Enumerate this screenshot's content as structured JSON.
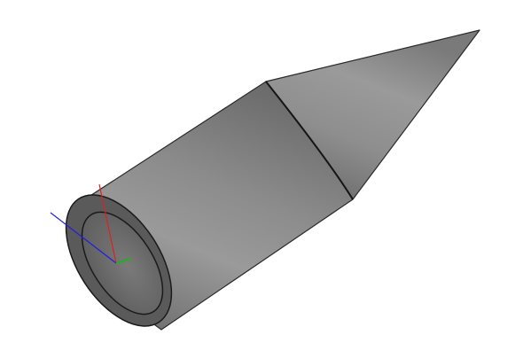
{
  "scene": {
    "background_color": "#ffffff",
    "model": {
      "shape": "hollow cylinder with conical tip",
      "body_color": "#8a8a8a",
      "edge_color": "#1a1a1a"
    },
    "axes": {
      "x_color": "#e02020",
      "y_color": "#20b020",
      "z_color": "#2020e0"
    }
  }
}
